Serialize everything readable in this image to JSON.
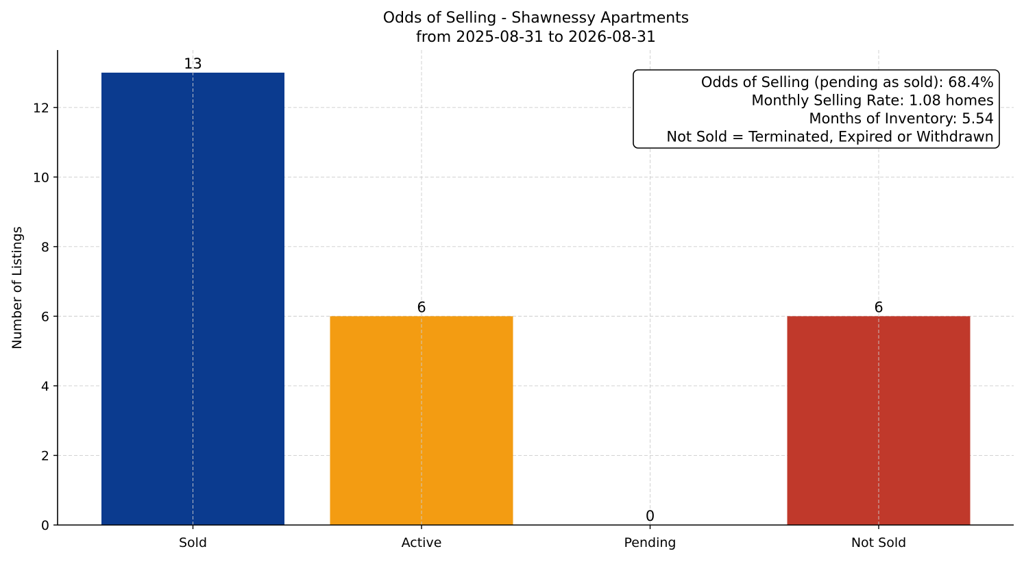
{
  "chart_data": {
    "type": "bar",
    "title": "Odds of Selling - Shawnessy Apartments",
    "subtitle": "from 2025-08-31 to 2026-08-31",
    "xlabel": "",
    "ylabel": "Number of Listings",
    "categories": [
      "Sold",
      "Active",
      "Pending",
      "Not Sold"
    ],
    "values": [
      13,
      6,
      0,
      6
    ],
    "colors": [
      "#0b3b8f",
      "#f39c12",
      "#f39c12",
      "#c0392b"
    ],
    "ylim": [
      0,
      13.65
    ],
    "yticks": [
      0,
      2,
      4,
      6,
      8,
      10,
      12
    ],
    "grid": true,
    "info_box": {
      "placement": "top-right",
      "lines": [
        "Odds of Selling (pending as sold): 68.4%",
        "Monthly Selling Rate: 1.08 homes",
        "Months of Inventory: 5.54",
        "Not Sold = Terminated, Expired or Withdrawn"
      ]
    }
  }
}
